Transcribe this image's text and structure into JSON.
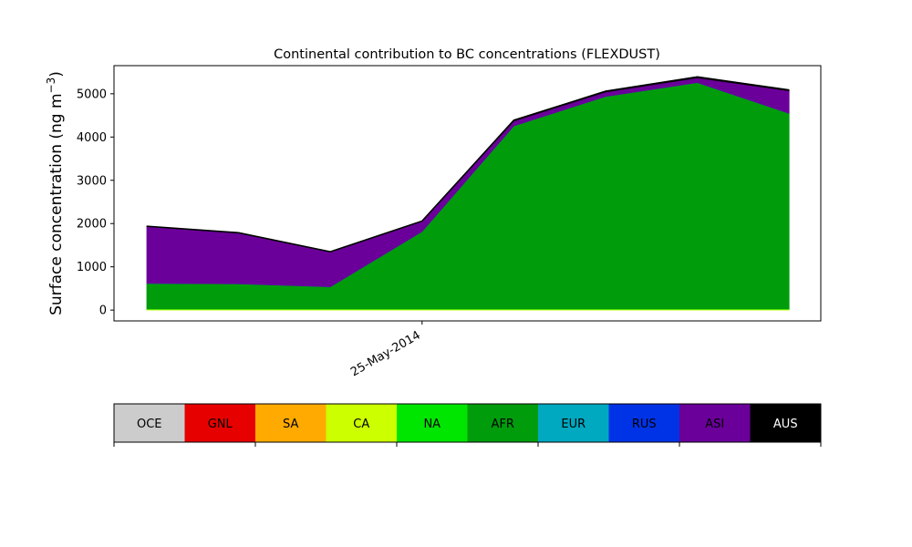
{
  "chart_data": {
    "type": "area",
    "stacked": true,
    "title": "Continental contribution to BC concentrations (FLEXDUST)",
    "ylabel_main": "Surface concentration (ng m",
    "ylabel_sup": "−3",
    "ylabel_close": ")",
    "xlabel": "",
    "ylim": [
      -250,
      5650
    ],
    "yticks": [
      0,
      1000,
      2000,
      3000,
      4000,
      5000
    ],
    "xlim": [
      0,
      7.69
    ],
    "x_tick": {
      "pos": 3,
      "label": "25-May-2014"
    },
    "x": [
      0,
      1,
      2,
      3,
      4,
      5,
      6,
      7
    ],
    "series": [
      {
        "name": "OCE",
        "color": "#cccccc",
        "values": [
          0,
          0,
          0,
          0,
          0,
          0,
          0,
          0
        ]
      },
      {
        "name": "GNL",
        "color": "#e60000",
        "values": [
          0,
          0,
          0,
          0,
          0,
          0,
          0,
          0
        ]
      },
      {
        "name": "SA",
        "color": "#ffaa00",
        "values": [
          0,
          0,
          0,
          0,
          0,
          0,
          0,
          0
        ]
      },
      {
        "name": "CA",
        "color": "#ccff00",
        "values": [
          20,
          20,
          20,
          20,
          20,
          20,
          20,
          20
        ]
      },
      {
        "name": "NA",
        "color": "#00e600",
        "values": [
          10,
          10,
          10,
          10,
          10,
          10,
          10,
          10
        ]
      },
      {
        "name": "AFR",
        "color": "#009c0c",
        "values": [
          590,
          580,
          510,
          1790,
          4230,
          4910,
          5230,
          4520
        ]
      },
      {
        "name": "EUR",
        "color": "#00a8c0",
        "values": [
          0,
          0,
          0,
          0,
          0,
          0,
          0,
          0
        ]
      },
      {
        "name": "RUS",
        "color": "#0033e6",
        "values": [
          0,
          0,
          0,
          0,
          0,
          0,
          0,
          0
        ]
      },
      {
        "name": "ASI",
        "color": "#6a0099",
        "values": [
          1310,
          1170,
          800,
          230,
          110,
          100,
          110,
          520
        ]
      },
      {
        "name": "AUS",
        "color": "#000000",
        "values": [
          10,
          10,
          10,
          10,
          20,
          20,
          20,
          20
        ]
      }
    ],
    "legend_placement": "bottom colorbar"
  }
}
